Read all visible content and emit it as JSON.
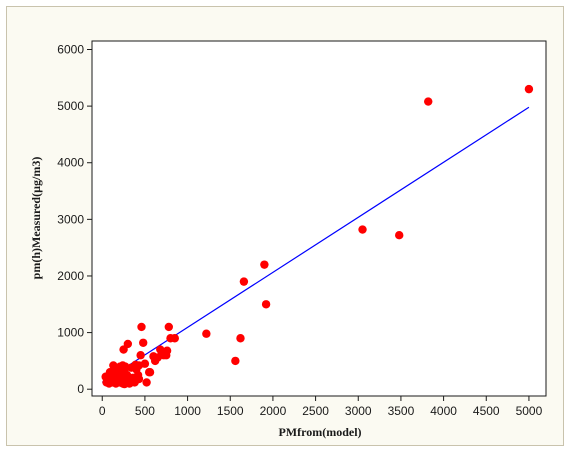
{
  "chart_data": {
    "type": "scatter",
    "xlabel": "PMfrom(model)",
    "ylabel": "pm(h)Measured(µg/m3)",
    "xlim": [
      -120,
      5200
    ],
    "ylim": [
      -120,
      6150
    ],
    "x_ticks": [
      0,
      500,
      1000,
      1500,
      2000,
      2500,
      3000,
      3500,
      4000,
      4500,
      5000
    ],
    "y_ticks": [
      0,
      1000,
      2000,
      3000,
      4000,
      5000,
      6000
    ],
    "grid": false,
    "points": [
      [
        5000,
        5300
      ],
      [
        3820,
        5080
      ],
      [
        3480,
        2720
      ],
      [
        3050,
        2820
      ],
      [
        1900,
        2200
      ],
      [
        1920,
        1500
      ],
      [
        1660,
        1900
      ],
      [
        1620,
        900
      ],
      [
        1560,
        500
      ],
      [
        1220,
        980
      ],
      [
        850,
        900
      ],
      [
        780,
        1100
      ],
      [
        760,
        680
      ],
      [
        720,
        600
      ],
      [
        680,
        700
      ],
      [
        650,
        560
      ],
      [
        600,
        580
      ],
      [
        560,
        300
      ],
      [
        520,
        120
      ],
      [
        480,
        820
      ],
      [
        460,
        1100
      ],
      [
        450,
        600
      ],
      [
        430,
        420
      ],
      [
        400,
        350
      ],
      [
        380,
        120
      ],
      [
        360,
        200
      ],
      [
        340,
        380
      ],
      [
        320,
        100
      ],
      [
        300,
        800
      ],
      [
        290,
        250
      ],
      [
        280,
        150
      ],
      [
        270,
        400
      ],
      [
        260,
        300
      ],
      [
        250,
        700
      ],
      [
        240,
        100
      ],
      [
        230,
        350
      ],
      [
        220,
        200
      ],
      [
        210,
        400
      ],
      [
        200,
        120
      ],
      [
        190,
        300
      ],
      [
        180,
        250
      ],
      [
        170,
        150
      ],
      [
        160,
        100
      ],
      [
        150,
        350
      ],
      [
        140,
        200
      ],
      [
        130,
        280
      ],
      [
        120,
        120
      ],
      [
        110,
        220
      ],
      [
        100,
        150
      ],
      [
        90,
        300
      ],
      [
        80,
        100
      ],
      [
        70,
        200
      ],
      [
        60,
        160
      ],
      [
        50,
        120
      ],
      [
        40,
        220
      ],
      [
        350,
        150
      ],
      [
        420,
        250
      ],
      [
        500,
        450
      ],
      [
        550,
        300
      ],
      [
        620,
        500
      ],
      [
        700,
        650
      ],
      [
        750,
        600
      ],
      [
        800,
        900
      ],
      [
        240,
        420
      ],
      [
        180,
        380
      ],
      [
        130,
        420
      ],
      [
        310,
        180
      ],
      [
        260,
        90
      ],
      [
        430,
        180
      ],
      [
        390,
        430
      ]
    ],
    "fit_line": {
      "x": [
        0,
        5000
      ],
      "y": [
        120,
        4980
      ]
    },
    "colors": {
      "points": "#ff0000",
      "line": "#0000ff",
      "frame": "#c9c3ad"
    }
  }
}
